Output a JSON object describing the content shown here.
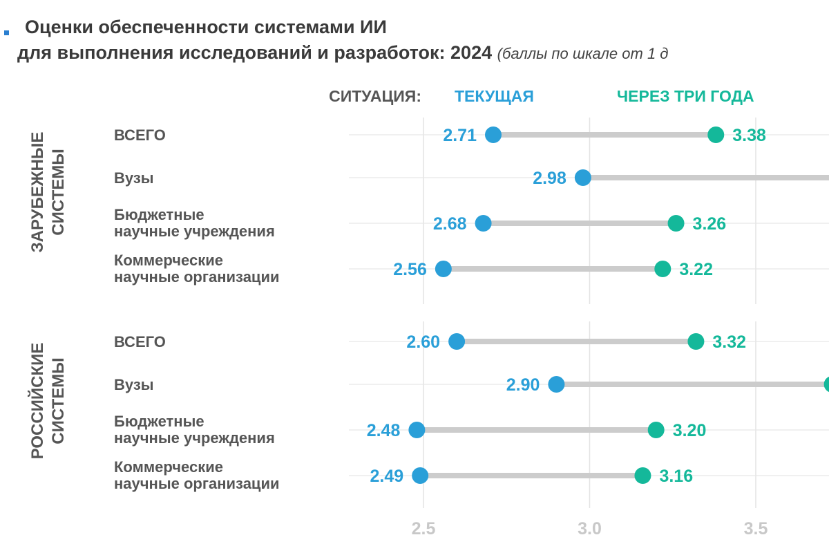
{
  "title": {
    "line1": "Оценки обеспеченности системами ИИ",
    "line2": "для выполнения исследований и разработок: 2024",
    "subtitle": "(баллы по шкале от 1 д"
  },
  "chart_data": {
    "type": "dumbbell",
    "legend": {
      "prefix": "СИТУАЦИЯ:",
      "current": "ТЕКУЩАЯ",
      "future": "ЧЕРЕЗ ТРИ ГОДА",
      "placement": "top"
    },
    "colors": {
      "current": "#2a9fd8",
      "future": "#14b89a",
      "connector": "#cccccc",
      "text": "#555555",
      "tick": "#c8c8c8"
    },
    "x_ticks": [
      "2.5",
      "3.0",
      "3.5"
    ],
    "xlim": [
      2.28,
      3.72
    ],
    "grid": true,
    "groups": [
      {
        "label": [
          "ЗАРУБЕЖНЫЕ",
          "СИСТЕМЫ"
        ],
        "rows": [
          {
            "category": [
              "ВСЕГО"
            ],
            "current": 2.71,
            "future": 3.38
          },
          {
            "category": [
              "Вузы"
            ],
            "current": 2.98,
            "future": null
          },
          {
            "category": [
              "Бюджетные",
              "научные учреждения"
            ],
            "current": 2.68,
            "future": 3.26
          },
          {
            "category": [
              "Коммерческие",
              "научные организации"
            ],
            "current": 2.56,
            "future": 3.22
          }
        ]
      },
      {
        "label": [
          "РОССИЙСКИЕ",
          "СИСТЕМЫ"
        ],
        "rows": [
          {
            "category": [
              "ВСЕГО"
            ],
            "current": 2.6,
            "future": 3.32
          },
          {
            "category": [
              "Вузы"
            ],
            "current": 2.9,
            "future": 3.73
          },
          {
            "category": [
              "Бюджетные",
              "научные учреждения"
            ],
            "current": 2.48,
            "future": 3.2
          },
          {
            "category": [
              "Коммерческие",
              "научные организации"
            ],
            "current": 2.49,
            "future": 3.16
          }
        ]
      }
    ]
  }
}
